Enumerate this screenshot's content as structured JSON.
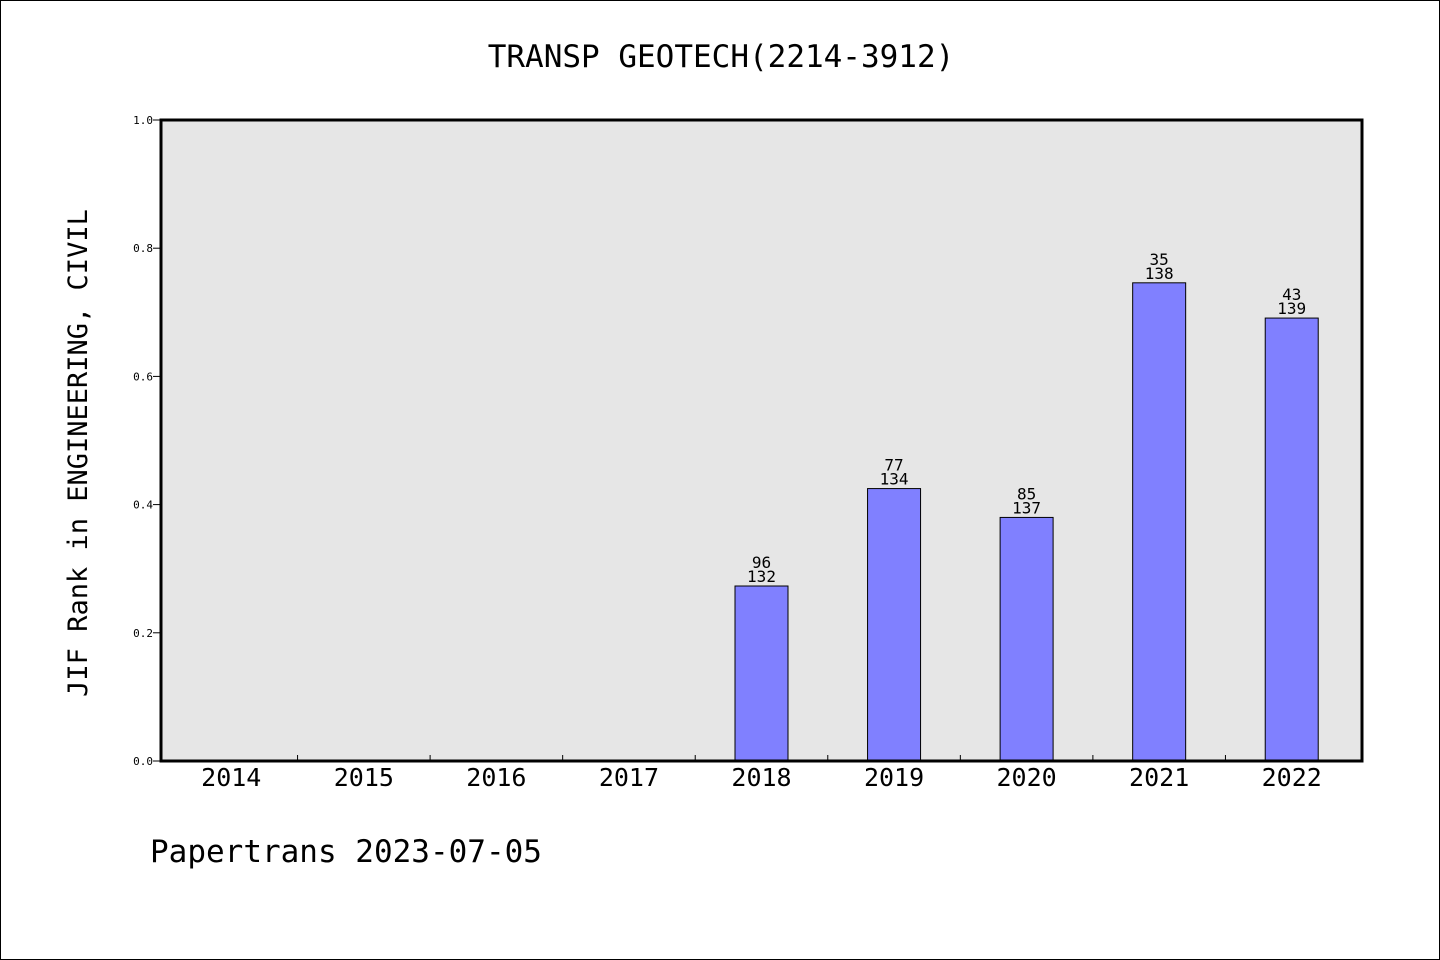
{
  "chart_data": {
    "type": "bar",
    "title": "TRANSP GEOTECH(2214-3912)",
    "ylabel": "JIF Rank in ENGINEERING, CIVIL",
    "xlabel": "",
    "categories": [
      "2014",
      "2015",
      "2016",
      "2017",
      "2018",
      "2019",
      "2020",
      "2021",
      "2022"
    ],
    "values": [
      null,
      null,
      null,
      null,
      0.273,
      0.425,
      0.38,
      0.746,
      0.691
    ],
    "bar_labels": [
      null,
      null,
      null,
      null,
      {
        "rank": "96",
        "total": "132"
      },
      {
        "rank": "77",
        "total": "134"
      },
      {
        "rank": "85",
        "total": "137"
      },
      {
        "rank": "35",
        "total": "138"
      },
      {
        "rank": "43",
        "total": "139"
      }
    ],
    "ylim": [
      0.0,
      1.0
    ],
    "yticks": [
      "0.0",
      "0.2",
      "0.4",
      "0.6",
      "0.8",
      "1.0"
    ],
    "grid": false,
    "legend": "none",
    "colors": {
      "bar": "#8080ff",
      "plot_background": "#e6e6e6",
      "axis": "#000000"
    }
  },
  "footer": {
    "credit": "Papertrans 2023-07-05"
  }
}
